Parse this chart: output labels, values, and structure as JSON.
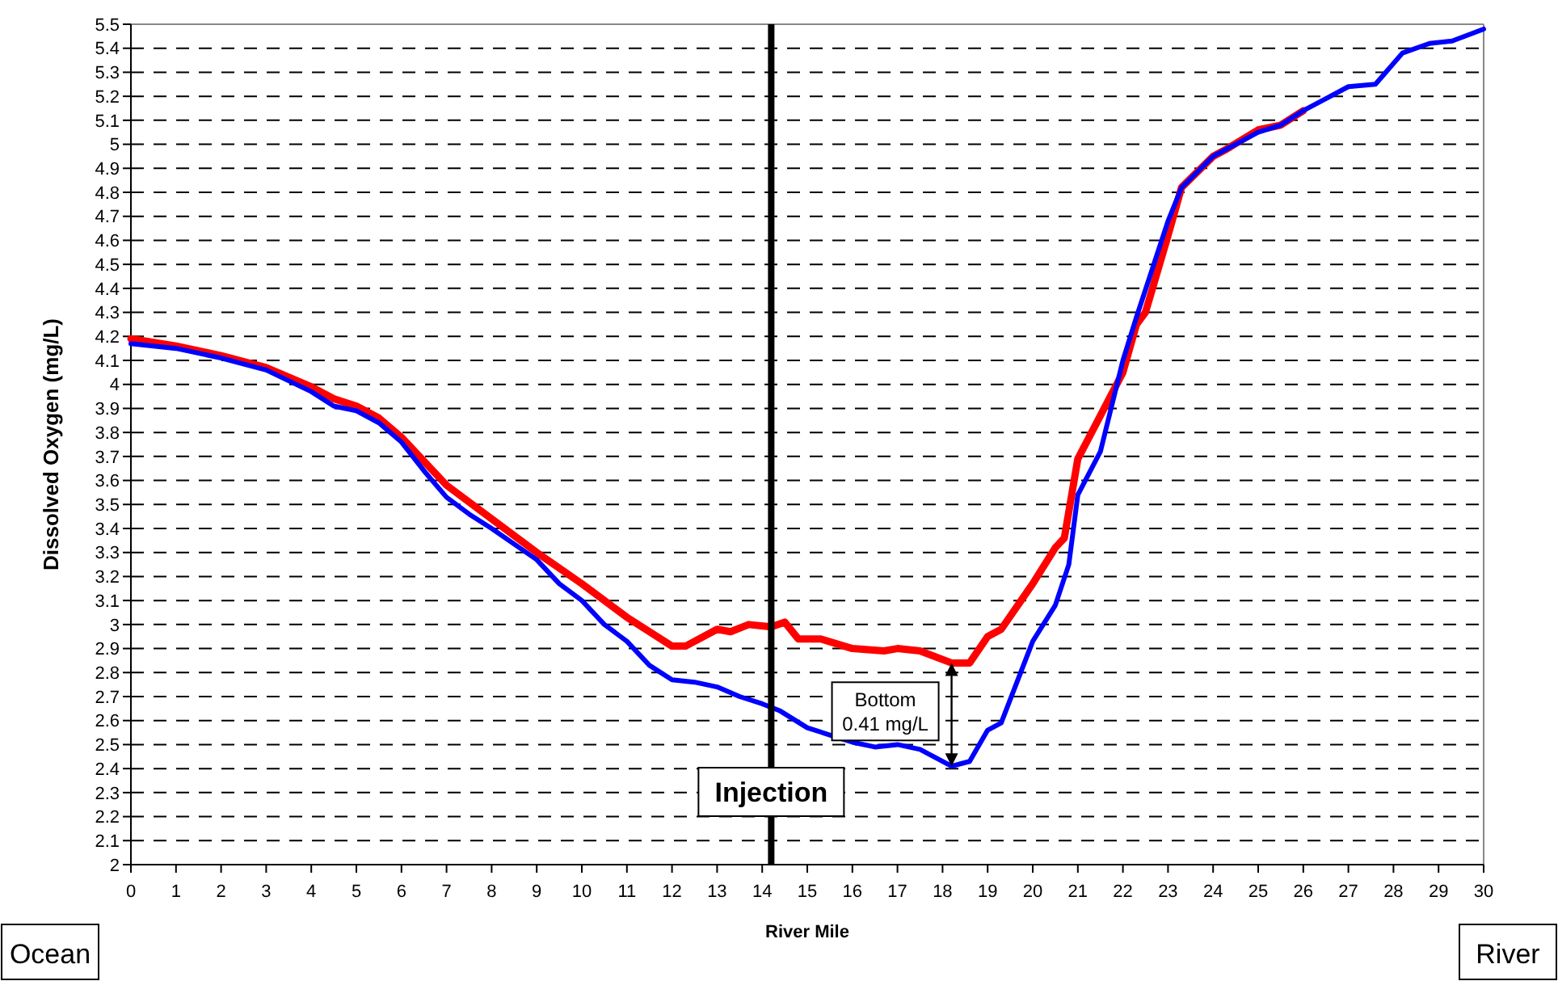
{
  "chart_data": {
    "type": "line",
    "xlabel": "River Mile",
    "ylabel": "Dissolved Oxygen (mg/L)",
    "xlim": [
      0,
      30
    ],
    "xticks": [
      0,
      1,
      2,
      3,
      4,
      5,
      6,
      7,
      8,
      9,
      10,
      11,
      12,
      13,
      14,
      15,
      16,
      17,
      18,
      19,
      20,
      21,
      22,
      23,
      24,
      25,
      26,
      27,
      28,
      29,
      30
    ],
    "ylim": [
      2,
      5.5
    ],
    "yticks": [
      2,
      2.1,
      2.2,
      2.3,
      2.4,
      2.5,
      2.6,
      2.7,
      2.8,
      2.9,
      3,
      3.1,
      3.2,
      3.3,
      3.4,
      3.5,
      3.6,
      3.7,
      3.8,
      3.9,
      4,
      4.1,
      4.2,
      4.3,
      4.4,
      4.5,
      4.6,
      4.7,
      4.8,
      4.9,
      5,
      5.1,
      5.2,
      5.3,
      5.4,
      5.5
    ],
    "grid": "y",
    "marker": "none",
    "line_style": "solid",
    "series": [
      {
        "color": "#ff0000",
        "x": [
          0,
          1,
          2,
          3,
          4,
          4.5,
          5,
          5.5,
          6,
          6.5,
          7,
          8,
          9,
          10,
          10.5,
          11,
          11.5,
          12,
          12.3,
          13,
          13.3,
          13.7,
          14.2,
          14.5,
          14.8,
          15.3,
          16,
          16.7,
          17,
          17.5,
          18.2,
          18.6,
          19,
          19.3,
          20,
          20.5,
          20.7,
          21,
          21.5,
          22,
          22.3,
          22.5,
          23,
          23.3,
          24,
          24.3,
          25,
          25.5,
          26
        ],
        "values": [
          4.19,
          4.16,
          4.12,
          4.07,
          3.99,
          3.94,
          3.91,
          3.86,
          3.78,
          3.68,
          3.58,
          3.44,
          3.3,
          3.17,
          3.1,
          3.03,
          2.97,
          2.91,
          2.91,
          2.98,
          2.97,
          3,
          2.99,
          3.01,
          2.94,
          2.94,
          2.9,
          2.89,
          2.9,
          2.89,
          2.84,
          2.84,
          2.95,
          2.98,
          3.17,
          3.32,
          3.36,
          3.69,
          3.87,
          4.05,
          4.25,
          4.3,
          4.62,
          4.82,
          4.95,
          4.98,
          5.06,
          5.08,
          5.14
        ]
      },
      {
        "color": "#0000ff",
        "x": [
          0,
          1,
          2,
          3,
          4,
          4.5,
          5,
          5.5,
          6,
          6.5,
          7,
          7.5,
          8,
          9,
          9.5,
          10,
          10.5,
          11,
          11.5,
          12,
          12.5,
          13,
          13.5,
          14,
          14.4,
          15,
          15.5,
          16,
          16.5,
          17,
          17.5,
          18.2,
          18.6,
          19,
          19.3,
          20,
          20.5,
          20.8,
          21,
          21.5,
          22,
          22.3,
          23,
          23.3,
          24,
          24.3,
          25,
          25.5,
          26,
          26.5,
          27,
          27.6,
          28.2,
          28.8,
          29.3,
          30
        ],
        "values": [
          4.17,
          4.15,
          4.11,
          4.06,
          3.97,
          3.91,
          3.89,
          3.84,
          3.76,
          3.64,
          3.53,
          3.46,
          3.4,
          3.27,
          3.17,
          3.1,
          3,
          2.93,
          2.83,
          2.77,
          2.76,
          2.74,
          2.7,
          2.67,
          2.64,
          2.57,
          2.54,
          2.51,
          2.49,
          2.5,
          2.48,
          2.41,
          2.43,
          2.56,
          2.59,
          2.93,
          3.08,
          3.25,
          3.54,
          3.72,
          4.1,
          4.28,
          4.68,
          4.82,
          4.95,
          4.98,
          5.05,
          5.08,
          5.14,
          5.19,
          5.24,
          5.25,
          5.38,
          5.42,
          5.43,
          5.48
        ]
      }
    ],
    "ref_lines": [
      {
        "axis": "x",
        "value": 14.2,
        "label": "Injection",
        "color": "#000000",
        "line_style": "solid"
      }
    ],
    "annotations": [
      "Bottom 0.41 mg/L",
      "Ocean",
      "River"
    ]
  }
}
